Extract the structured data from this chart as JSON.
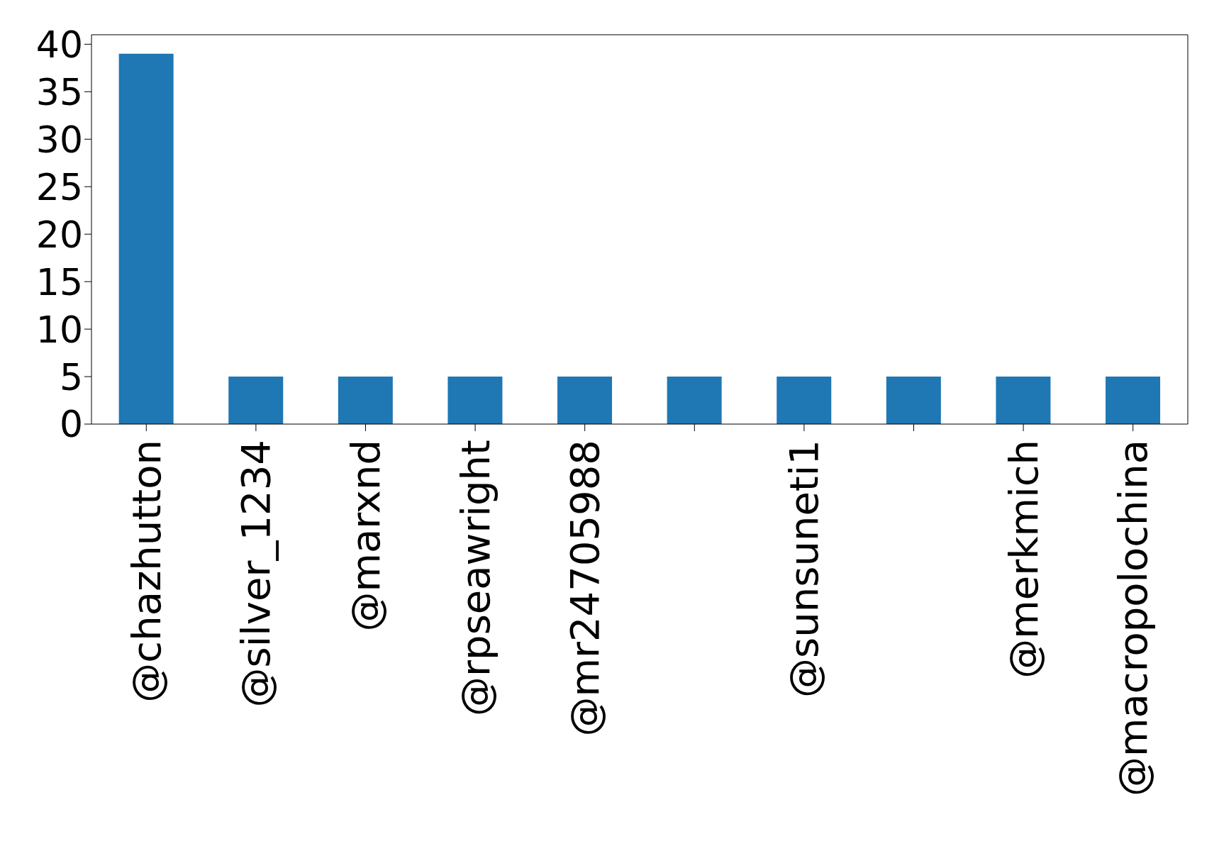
{
  "chart_data": {
    "type": "bar",
    "categories": [
      "@chazhutton",
      "@silver_1234",
      "@marxnd",
      "@rpseawright",
      "@mr24705988",
      null,
      "@sunsuneti1",
      null,
      "@merkmich",
      "@macropolochina"
    ],
    "values": [
      39,
      5,
      5,
      5,
      5,
      5,
      5,
      5,
      5,
      5
    ],
    "color": "#1f77b4",
    "ylim": [
      0,
      41
    ],
    "yticks": [
      0,
      5,
      10,
      15,
      20,
      25,
      30,
      35,
      40
    ],
    "grid": false
  }
}
